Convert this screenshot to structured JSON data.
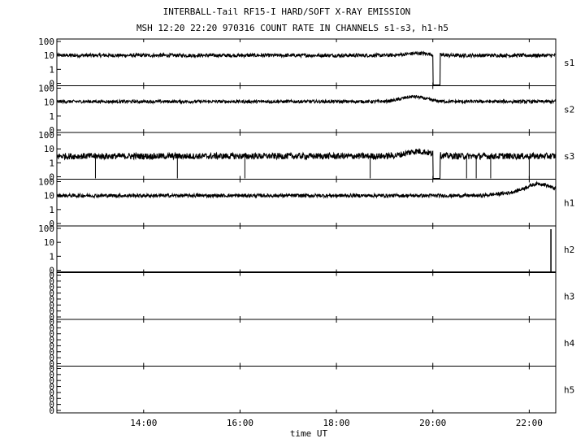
{
  "chart_data": {
    "type": "line",
    "title": "INTERBALL-Tail RF15-I HARD/SOFT X-RAY EMISSION",
    "subtitle": "MSH 12:20 22:20 970316  COUNT RATE IN CHANNELS s1-s3, h1-h5",
    "xlabel": "time UT",
    "x_range_hours": [
      12.2,
      22.55
    ],
    "x_ticks": [
      {
        "value": 14,
        "label": "14:00"
      },
      {
        "value": 16,
        "label": "16:00"
      },
      {
        "value": 18,
        "label": "18:00"
      },
      {
        "value": 20,
        "label": "20:00"
      },
      {
        "value": 22,
        "label": "22:00"
      }
    ],
    "y_scale": "log",
    "grid": false,
    "panels": [
      {
        "name": "s1",
        "y_ticks": [
          "100",
          "10",
          "1",
          "0"
        ],
        "baseline": 10,
        "noise": 0.25,
        "bump": {
          "center": 19.7,
          "amp": 0.15
        },
        "dropout": [
          20.0,
          20.15
        ],
        "spikes": []
      },
      {
        "name": "s2",
        "y_ticks": [
          "100",
          "10",
          "1",
          "0"
        ],
        "baseline": 11,
        "noise": 0.22,
        "bump": {
          "center": 19.6,
          "amp": 0.35
        },
        "dropout": [],
        "spikes": []
      },
      {
        "name": "s3",
        "y_ticks": [
          "100",
          "10",
          "1",
          "0"
        ],
        "baseline": 3,
        "noise": 0.45,
        "bump": {
          "center": 19.7,
          "amp": 0.35
        },
        "dropout": [
          20.0,
          20.15
        ],
        "spikes": [
          13.0,
          14.7,
          16.1,
          18.7,
          20.7,
          20.9,
          21.2,
          22.0
        ]
      },
      {
        "name": "h1",
        "y_ticks": [
          "100",
          "10",
          "1",
          "0"
        ],
        "baseline": 10,
        "noise": 0.25,
        "bump": {
          "center": 22.2,
          "amp": 0.6
        },
        "dropout": [],
        "spikes": []
      },
      {
        "name": "h2",
        "y_ticks": [
          "100",
          "10",
          "1",
          "0"
        ],
        "baseline": null,
        "end_spike": 22.45
      },
      {
        "name": "h3",
        "y_ticks": [
          "0",
          "0",
          "0",
          "0",
          "0",
          "0",
          "0",
          "0"
        ],
        "baseline": null
      },
      {
        "name": "h4",
        "y_ticks": [
          "0",
          "0",
          "0",
          "0",
          "0",
          "0",
          "0",
          "0"
        ],
        "baseline": null
      },
      {
        "name": "h5",
        "y_ticks": [
          "0",
          "0",
          "0",
          "0",
          "0",
          "0",
          "0",
          "0"
        ],
        "baseline": null
      }
    ]
  }
}
